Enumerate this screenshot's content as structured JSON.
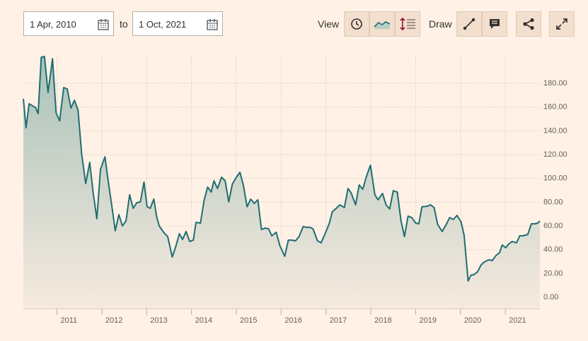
{
  "toolbar": {
    "start_date": "1 Apr, 2010",
    "to": "to",
    "end_date": "1 Oct, 2021",
    "view_label": "View",
    "draw_label": "Draw"
  },
  "chart_data": {
    "type": "line",
    "color": "#1f6e72",
    "grid": true,
    "xlim": [
      2010.25,
      2021.77
    ],
    "xticks": [
      2011,
      2012,
      2013,
      2014,
      2015,
      2016,
      2017,
      2018,
      2019,
      2020,
      2021
    ],
    "ylim": [
      -9.5,
      205.6
    ],
    "yticks": [
      {
        "value": 0,
        "label": "0.00"
      },
      {
        "value": 20,
        "label": "20.00"
      },
      {
        "value": 40,
        "label": "40.00"
      },
      {
        "value": 60,
        "label": "60.00"
      },
      {
        "value": 80,
        "label": "80.00"
      },
      {
        "value": 100,
        "label": "100.00"
      },
      {
        "value": 120,
        "label": "120.00"
      },
      {
        "value": 140,
        "label": "140.00"
      },
      {
        "value": 160,
        "label": "160.00"
      },
      {
        "value": 180,
        "label": "180.00"
      }
    ],
    "x": [
      2010.25,
      2010.31,
      2010.38,
      2010.46,
      2010.52,
      2010.58,
      2010.65,
      2010.72,
      2010.8,
      2010.9,
      2010.98,
      2011.06,
      2011.15,
      2011.23,
      2011.31,
      2011.39,
      2011.47,
      2011.55,
      2011.64,
      2011.73,
      2011.81,
      2011.89,
      2011.97,
      2012.07,
      2012.15,
      2012.22,
      2012.3,
      2012.38,
      2012.46,
      2012.54,
      2012.62,
      2012.7,
      2012.78,
      2012.86,
      2012.94,
      2013.01,
      2013.08,
      2013.16,
      2013.22,
      2013.28,
      2013.39,
      2013.47,
      2013.57,
      2013.65,
      2013.73,
      2013.8,
      2013.88,
      2013.96,
      2014.04,
      2014.1,
      2014.2,
      2014.28,
      2014.36,
      2014.44,
      2014.5,
      2014.58,
      2014.67,
      2014.75,
      2014.83,
      2014.91,
      2014.99,
      2015.08,
      2015.16,
      2015.24,
      2015.32,
      2015.4,
      2015.48,
      2015.56,
      2015.64,
      2015.72,
      2015.79,
      2015.89,
      2015.97,
      2016.08,
      2016.16,
      2016.24,
      2016.32,
      2016.4,
      2016.49,
      2016.57,
      2016.65,
      2016.71,
      2016.81,
      2016.89,
      2016.96,
      2017.07,
      2017.14,
      2017.23,
      2017.31,
      2017.41,
      2017.49,
      2017.56,
      2017.66,
      2017.74,
      2017.82,
      2017.9,
      2017.99,
      2018.09,
      2018.16,
      2018.26,
      2018.34,
      2018.42,
      2018.5,
      2018.59,
      2018.67,
      2018.75,
      2018.83,
      2018.91,
      2019.0,
      2019.07,
      2019.14,
      2019.26,
      2019.33,
      2019.41,
      2019.49,
      2019.59,
      2019.68,
      2019.76,
      2019.84,
      2019.92,
      2020.01,
      2020.08,
      2020.17,
      2020.23,
      2020.3,
      2020.38,
      2020.46,
      2020.53,
      2020.63,
      2020.71,
      2020.79,
      2020.87,
      2020.93,
      2021.01,
      2021.07,
      2021.15,
      2021.25,
      2021.32,
      2021.4,
      2021.5,
      2021.58,
      2021.66,
      2021.72,
      2021.77
    ],
    "values": [
      167,
      142.6,
      162.8,
      161,
      159.8,
      154.5,
      202,
      202.6,
      172.3,
      200.8,
      155.1,
      148.5,
      176.5,
      175.3,
      159.2,
      165.8,
      157.5,
      120.6,
      95.7,
      113.5,
      86.7,
      66,
      107.5,
      118.2,
      95.7,
      77.8,
      55.9,
      69.5,
      60,
      64.2,
      86.2,
      74.9,
      79.6,
      80.2,
      96.9,
      76.1,
      74.9,
      82.6,
      68.3,
      60,
      54.1,
      51.1,
      33.9,
      42.8,
      53.5,
      48.7,
      55.3,
      46.9,
      48.1,
      63,
      62.4,
      81.4,
      92.7,
      88.5,
      98,
      91.5,
      101,
      98,
      80.2,
      95.1,
      100.4,
      105.2,
      93.9,
      76.1,
      82.6,
      79,
      82,
      57,
      58.2,
      57.6,
      51.7,
      54.7,
      43.4,
      34.5,
      48.1,
      48.1,
      47.5,
      51.1,
      59.4,
      58.8,
      58.8,
      57.6,
      47.5,
      45.8,
      51.7,
      61.8,
      71.9,
      74.9,
      77.8,
      75.5,
      91.5,
      87.9,
      77.8,
      94.5,
      90.9,
      101.6,
      111.1,
      86.2,
      82,
      87.3,
      77.8,
      74.3,
      89.7,
      88.5,
      64.8,
      51.1,
      68.3,
      67.1,
      62.4,
      61.8,
      76.1,
      76.6,
      77.8,
      75.5,
      61.2,
      55.3,
      61.2,
      67.1,
      65.4,
      68.9,
      63.6,
      52.3,
      13.7,
      18.4,
      19,
      21.4,
      27.3,
      29.7,
      31.5,
      30.9,
      35.1,
      37.4,
      44,
      41.6,
      44.6,
      46.9,
      45.8,
      51.7,
      51.7,
      52.9,
      61.8,
      61.8,
      62.4,
      64.2
    ]
  }
}
